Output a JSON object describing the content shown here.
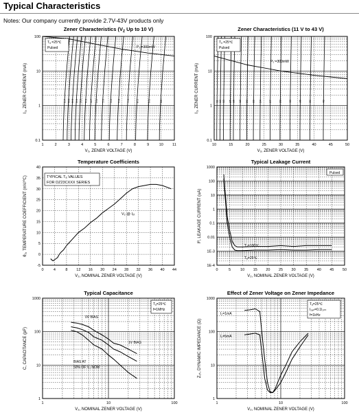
{
  "page": {
    "title": "Typical Characteristics",
    "notes": "Notes:  Our company currently provide 2.7V-43V products only"
  },
  "chart_data": [
    {
      "type": "line",
      "title": "Zener Characteristics (V₂ Up to 10 V)",
      "title_main": "Zener Characteristics (V",
      "title_sub": "Z",
      "title_tail": " Up to 10 V)",
      "ylabel": "I₂, ZENER CURRENT (mA)",
      "xlabel": "V₂, ZENER VOLTAGE (V)",
      "xlim": [
        1,
        11
      ],
      "ylim": [
        0.1,
        100
      ],
      "yscale": "log",
      "xticks": [
        "1",
        "2",
        "3",
        "4",
        "5",
        "6",
        "7",
        "8",
        "9",
        "10",
        "11"
      ],
      "yticks": [
        "100",
        "10",
        "1",
        "0.1"
      ],
      "annotations": [
        "Tₐ =25℃",
        "Pulsed",
        "P₂ =300mW"
      ],
      "series_labels": [
        "2.7",
        "3.0",
        "3.3",
        "3.6",
        "3.9",
        "4.3",
        "4.7",
        "5.1",
        "5.6",
        "6.2",
        "6.8",
        "7.5",
        "8.2",
        "9.1",
        "10"
      ],
      "series_voltages": [
        2.7,
        3.0,
        3.3,
        3.6,
        3.9,
        4.3,
        4.7,
        5.1,
        5.6,
        6.2,
        6.8,
        7.5,
        8.2,
        9.1,
        10
      ],
      "power_curve": {
        "x": [
          1,
          3,
          5,
          7,
          9,
          11
        ],
        "y": [
          100,
          85,
          60,
          43,
          33,
          27
        ]
      }
    },
    {
      "type": "line",
      "title_main": "Zener Characteristics (",
      "title_sub": "",
      "title_tail": "11 V to 43 V)",
      "ylabel": "I₂, ZENER CURRENT (mA)",
      "xlabel": "V₂, ZENER VOLTAGE (V)",
      "xlim": [
        10,
        50
      ],
      "ylim": [
        0.1,
        100
      ],
      "yscale": "log",
      "xticks": [
        "10",
        "15",
        "20",
        "25",
        "30",
        "35",
        "40",
        "45",
        "50"
      ],
      "yticks": [
        "100",
        "10",
        "1",
        "0.1"
      ],
      "annotations": [
        "Tₐ =25℃",
        "Pulsed",
        "P₂ =300mW"
      ],
      "series_labels": [
        "11",
        "12",
        "13",
        "15",
        "16",
        "18",
        "20",
        "22",
        "24",
        "27",
        "30",
        "33",
        "36",
        "39",
        "43"
      ],
      "series_voltages": [
        11,
        12,
        13,
        15,
        16,
        18,
        20,
        22,
        24,
        27,
        30,
        33,
        36,
        39,
        43
      ],
      "power_curve": {
        "x": [
          10,
          20,
          30,
          40,
          50
        ],
        "y": [
          27,
          15,
          10,
          7.5,
          6
        ]
      }
    },
    {
      "type": "line",
      "title": "Temperature Coefficients",
      "ylabel": "θ₂, TEMPERATURE COEFFICIENT (mV/℃)",
      "xlabel": "V₂, NOMINAL ZENER VOLTAGE (V)",
      "xlim": [
        0,
        44
      ],
      "ylim": [
        -5,
        40
      ],
      "xticks": [
        "0",
        "4",
        "8",
        "12",
        "16",
        "20",
        "24",
        "28",
        "32",
        "36",
        "40",
        "44"
      ],
      "yticks": [
        "40",
        "35",
        "30",
        "25",
        "20",
        "15",
        "10",
        "5",
        "0",
        "-5"
      ],
      "annotations": [
        "TYPICAL Tₐ VALUES",
        "FOR DZ23CXXX SERIES",
        "V₂ @ I₂ₜ"
      ],
      "series": [
        {
          "x": [
            2.7,
            3,
            3.5,
            4,
            4.5,
            5,
            5.6,
            6.2,
            7,
            8,
            9,
            10,
            12,
            14,
            16,
            18,
            20,
            22,
            24,
            26,
            28,
            30,
            32,
            34,
            36,
            38,
            40,
            43
          ],
          "y": [
            -2,
            -2.5,
            -3,
            -2.5,
            -2,
            -1.5,
            0,
            1,
            2,
            4,
            5.5,
            7,
            10,
            12,
            14.5,
            16.5,
            19,
            21,
            23,
            25.5,
            28,
            30,
            31,
            31.5,
            32,
            32,
            31.5,
            30
          ]
        }
      ]
    },
    {
      "type": "line",
      "title": "Typical Leakage Current",
      "ylabel": "Iᴿ, LEAKAGE CURRENT (uA)",
      "xlabel": "V₂, NOMINAL ZENER VOLTAGE (V)",
      "xlim": [
        0,
        50
      ],
      "ylim": [
        0.0001,
        1000
      ],
      "yscale": "log",
      "xticks": [
        "0",
        "5",
        "10",
        "15",
        "20",
        "25",
        "30",
        "35",
        "40",
        "45",
        "50"
      ],
      "yticks": [
        "1000",
        "100",
        "10",
        "1",
        "0.1",
        "0.01",
        "1E-3",
        "1E-4"
      ],
      "annotations": [
        "Pulsed",
        "Tₐ=100℃",
        "Tₐ=25℃"
      ],
      "series": [
        {
          "x": [
            2.7,
            3,
            3.5,
            4,
            5,
            6,
            7,
            8,
            10,
            15,
            20,
            25,
            30,
            35,
            40,
            45
          ],
          "y": [
            300,
            40,
            5,
            0.3,
            0.03,
            0.005,
            0.0025,
            0.002,
            0.002,
            0.0022,
            0.0022,
            0.0025,
            0.0022,
            0.0025,
            0.0025,
            0.0025
          ]
        },
        {
          "x": [
            2.7,
            3,
            3.5,
            4,
            5,
            6,
            7,
            8,
            10,
            15,
            20,
            25,
            30,
            35,
            40,
            45
          ],
          "y": [
            150,
            20,
            2,
            0.1,
            0.01,
            0.002,
            0.0012,
            0.0011,
            0.0011,
            0.0012,
            0.0012,
            0.0013,
            0.0012,
            0.0012,
            0.0013,
            0.0013
          ]
        }
      ]
    },
    {
      "type": "line",
      "title": "Typical Capacitance",
      "ylabel": "C, CAPACITANCE (pF)",
      "xlabel": "V₂, NOMINAL ZENER VOLTAGE (V)",
      "xlim": [
        1,
        100
      ],
      "ylim": [
        1,
        1000
      ],
      "xscale": "log",
      "yscale": "log",
      "xticks": [
        "1",
        "10",
        "100"
      ],
      "yticks": [
        "1000",
        "100",
        "10",
        "1"
      ],
      "annotations": [
        "Tₐ=25℃",
        "f=1MHz",
        "0V BIAS",
        "1V BIAS",
        "BIAS AT",
        "50% OF V₂ NOM"
      ],
      "series": [
        {
          "name": "0V BIAS",
          "x": [
            2.7,
            3.3,
            4,
            5,
            6,
            8,
            10,
            12,
            15,
            20,
            27
          ],
          "y": [
            190,
            180,
            165,
            140,
            110,
            80,
            60,
            45,
            40,
            30,
            22
          ]
        },
        {
          "name": "1V BIAS",
          "x": [
            2.7,
            3.3,
            4,
            5,
            6,
            8,
            10,
            12,
            15,
            20,
            27
          ],
          "y": [
            140,
            130,
            115,
            95,
            70,
            55,
            40,
            30,
            25,
            18,
            13
          ]
        },
        {
          "name": "BIAS AT 50% OF V₂ NOM",
          "x": [
            2.7,
            3.3,
            4,
            5,
            6,
            8,
            10,
            12,
            15,
            20,
            27
          ],
          "y": [
            110,
            100,
            80,
            55,
            40,
            30,
            20,
            15,
            10,
            6,
            4
          ]
        }
      ]
    },
    {
      "type": "line",
      "title": "Effect of Zener Voltage on Zener Impedance",
      "ylabel": "Z₂ₜ, DYNAMIC IMPEDANCE (Ω)",
      "xlabel": "V₂, NOMINAL ZENER VOLTAGE (V)",
      "xlim": [
        1,
        100
      ],
      "ylim": [
        1,
        1000
      ],
      "xscale": "log",
      "yscale": "log",
      "xticks": [
        "1",
        "10",
        "100"
      ],
      "yticks": [
        "1000",
        "100",
        "10",
        "1"
      ],
      "annotations": [
        "Tₐ=25℃",
        "I₂ₐₙ=0.1I₂ₙₙ",
        "f=1kHz",
        "I₂=1mA",
        "I₂=5mA"
      ],
      "series": [
        {
          "name": "I₂=1mA",
          "x": [
            2.7,
            3.3,
            4,
            4.7,
            5.1,
            5.6,
            6.2,
            6.8,
            7.5,
            8.2,
            10,
            12,
            15,
            20,
            27
          ],
          "y": [
            430,
            450,
            480,
            400,
            80,
            15,
            3,
            1.6,
            1.5,
            2,
            5,
            10,
            25,
            50,
            90
          ]
        },
        {
          "name": "I₂=5mA",
          "x": [
            2.7,
            3.3,
            4,
            4.7,
            5.1,
            5.6,
            6.2,
            6.8,
            7.5,
            8.2,
            10,
            12,
            15,
            20,
            27
          ],
          "y": [
            80,
            85,
            90,
            80,
            20,
            4,
            1.8,
            1.5,
            1.5,
            1.8,
            3,
            6,
            15,
            35,
            80
          ]
        }
      ]
    }
  ]
}
